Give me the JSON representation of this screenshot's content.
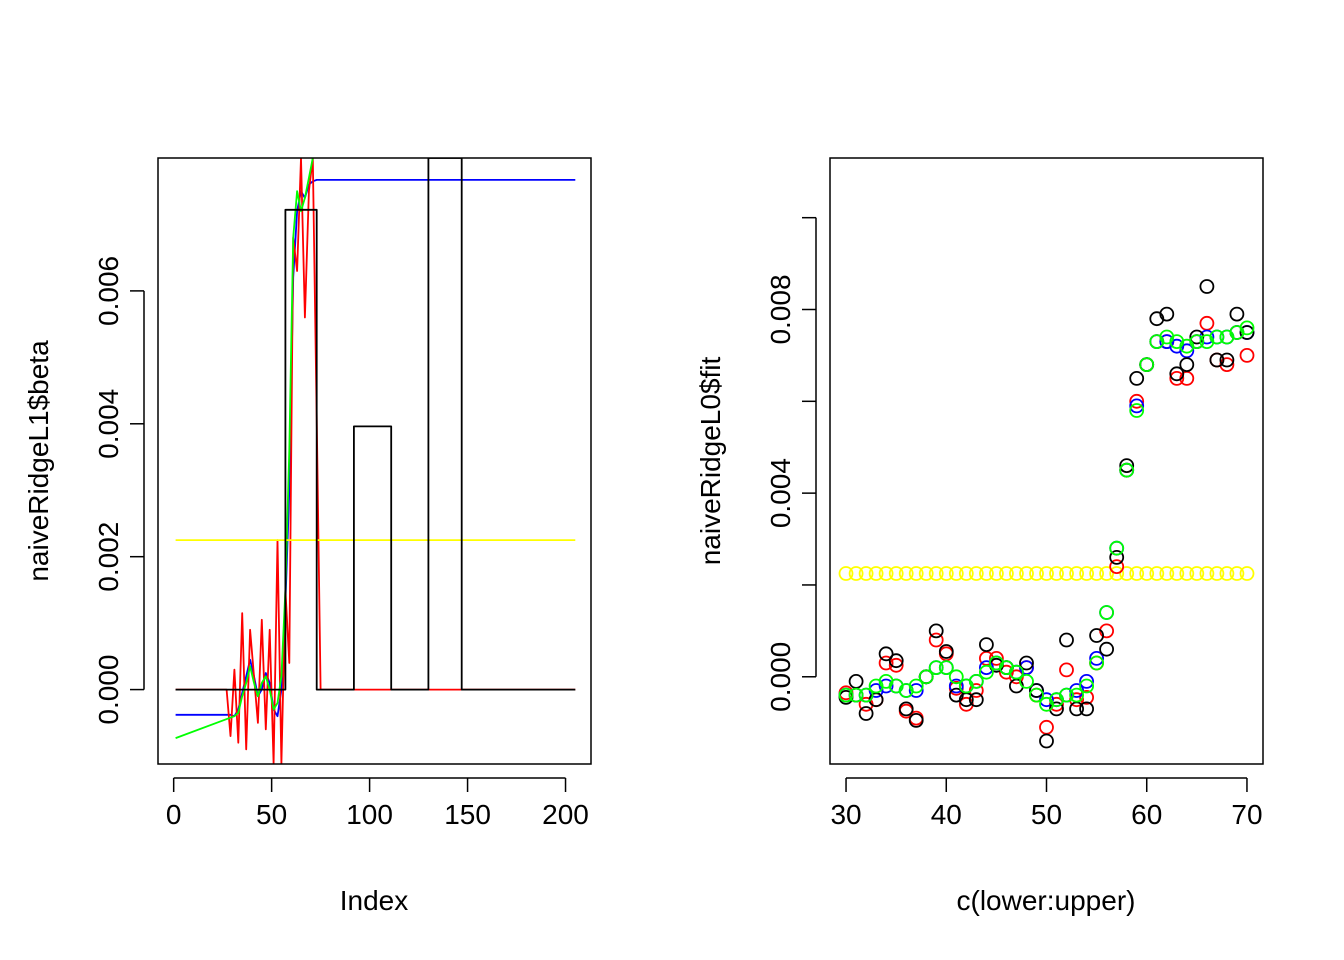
{
  "chart_data": [
    {
      "type": "line",
      "title": "",
      "xlabel": "Index",
      "ylabel": "naiveRidgeL1$beta",
      "xlim": [
        -8,
        213
      ],
      "ylim": [
        -0.00112,
        0.008
      ],
      "xticks": [
        0,
        50,
        100,
        150,
        200
      ],
      "xtick_labels": [
        "0",
        "50",
        "100",
        "150",
        "200"
      ],
      "yticks": [
        0.0,
        0.002,
        0.004,
        0.006
      ],
      "ytick_labels": [
        "0.000",
        "0.002",
        "0.004",
        "0.006"
      ],
      "grid": false,
      "legend": "none",
      "series": [
        {
          "color": "#0000ff",
          "points": [
            [
              1,
              -0.00038
            ],
            [
              29,
              -0.00038
            ],
            [
              31,
              -0.0004
            ],
            [
              33,
              -0.0003
            ],
            [
              35,
              -5e-05
            ],
            [
              37,
              0.0002
            ],
            [
              39,
              0.00045
            ],
            [
              41,
              0.0002
            ],
            [
              43,
              -0.0001
            ],
            [
              45,
              0.0
            ],
            [
              47,
              0.00025
            ],
            [
              49,
              0.0001
            ],
            [
              51,
              -0.0003
            ],
            [
              53,
              -0.0004
            ],
            [
              55,
              0.0
            ],
            [
              57,
              0.0013
            ],
            [
              59,
              0.003
            ],
            [
              61,
              0.0062
            ],
            [
              63,
              0.0072
            ],
            [
              65,
              0.0075
            ],
            [
              67,
              0.0074
            ],
            [
              69,
              0.0076
            ],
            [
              71,
              0.00765
            ],
            [
              73,
              0.00767
            ],
            [
              205,
              0.00767
            ]
          ]
        },
        {
          "color": "#ff0000",
          "points": [
            [
              1,
              0.0
            ],
            [
              27,
              0.0
            ],
            [
              29,
              -0.0007
            ],
            [
              31,
              0.0003
            ],
            [
              33,
              -0.0008
            ],
            [
              35,
              0.00115
            ],
            [
              37,
              -0.0009
            ],
            [
              39,
              0.0009
            ],
            [
              41,
              0.0002
            ],
            [
              43,
              -0.0005
            ],
            [
              45,
              0.00105
            ],
            [
              47,
              -0.0006
            ],
            [
              49,
              0.0009
            ],
            [
              51,
              -0.00112
            ],
            [
              53,
              0.00225
            ],
            [
              55,
              -0.00112
            ],
            [
              57,
              0.0015
            ],
            [
              59,
              0.0004
            ],
            [
              61,
              0.0068
            ],
            [
              63,
              0.0063
            ],
            [
              65,
              0.008
            ],
            [
              67,
              0.0056
            ],
            [
              69,
              0.0075
            ],
            [
              71,
              0.008
            ],
            [
              73,
              0.0041
            ],
            [
              75,
              0.0
            ],
            [
              205,
              0.0
            ]
          ]
        },
        {
          "color": "#00ff00",
          "points": [
            [
              1,
              -0.00073
            ],
            [
              31,
              -0.0004
            ],
            [
              33,
              -0.00035
            ],
            [
              35,
              -0.0001
            ],
            [
              37,
              0.0001
            ],
            [
              39,
              0.00035
            ],
            [
              41,
              0.0001
            ],
            [
              43,
              -0.0001
            ],
            [
              45,
              0.0001
            ],
            [
              47,
              0.0002
            ],
            [
              49,
              0.0
            ],
            [
              51,
              -0.0003
            ],
            [
              53,
              -0.0002
            ],
            [
              55,
              0.0002
            ],
            [
              57,
              0.0015
            ],
            [
              59,
              0.0036
            ],
            [
              61,
              0.0068
            ],
            [
              63,
              0.0075
            ],
            [
              65,
              0.0072
            ],
            [
              67,
              0.0074
            ],
            [
              69,
              0.0077
            ],
            [
              71,
              0.008
            ]
          ]
        },
        {
          "color": "#ffff00",
          "points": [
            [
              1,
              0.00225
            ],
            [
              205,
              0.00225
            ]
          ]
        },
        {
          "color": "#000000",
          "points": [
            [
              1,
              0.0
            ],
            [
              57,
              0.0
            ],
            [
              57,
              0.00722
            ],
            [
              73,
              0.00722
            ],
            [
              73,
              0.0
            ],
            [
              92,
              0.0
            ],
            [
              92,
              0.00396
            ],
            [
              111,
              0.00396
            ],
            [
              111,
              0.0
            ],
            [
              130,
              0.0
            ],
            [
              130,
              0.008
            ],
            [
              147,
              0.008
            ],
            [
              147,
              0.0
            ],
            [
              205,
              0.0
            ]
          ]
        }
      ]
    },
    {
      "type": "scatter",
      "title": "",
      "xlabel": "c(lower:upper)",
      "ylabel": "naiveRidgeL0$fit",
      "xlim": [
        28.4,
        71.6
      ],
      "ylim": [
        -0.0019,
        0.0113
      ],
      "xticks": [
        30,
        40,
        50,
        60,
        70
      ],
      "xtick_labels": [
        "30",
        "40",
        "50",
        "60",
        "70"
      ],
      "yticks": [
        0.0,
        0.004,
        0.008
      ],
      "ytick_labels": [
        "0.000",
        "0.004",
        "0.008"
      ],
      "ytick_minor": [
        0.002,
        0.006,
        0.01
      ],
      "grid": false,
      "legend": "none",
      "x": [
        30,
        31,
        32,
        33,
        34,
        35,
        36,
        37,
        38,
        39,
        40,
        41,
        42,
        43,
        44,
        45,
        46,
        47,
        48,
        49,
        50,
        51,
        52,
        53,
        54,
        55,
        56,
        57,
        58,
        59,
        60,
        61,
        62,
        63,
        64,
        65,
        66,
        67,
        68,
        69,
        70
      ],
      "series": [
        {
          "color": "#ffff00",
          "values": [
            0.00225,
            0.00225,
            0.00225,
            0.00225,
            0.00225,
            0.00225,
            0.00225,
            0.00225,
            0.00225,
            0.00225,
            0.00225,
            0.00225,
            0.00225,
            0.00225,
            0.00225,
            0.00225,
            0.00225,
            0.00225,
            0.00225,
            0.00225,
            0.00225,
            0.00225,
            0.00225,
            0.00225,
            0.00225,
            0.00225,
            0.00225,
            0.00225,
            0.00225,
            0.00225,
            0.00225,
            0.00225,
            0.00225,
            0.00225,
            0.00225,
            0.00225,
            0.00225,
            0.00225,
            0.00225,
            0.00225,
            0.00225
          ]
        },
        {
          "color": "#ff0000",
          "values": [
            -0.00035,
            -0.0004,
            -0.0006,
            -0.0005,
            0.0003,
            0.00025,
            -0.00075,
            -0.0009,
            0.0,
            0.0008,
            0.0005,
            -0.00025,
            -0.0006,
            -0.0003,
            0.0004,
            0.0004,
            0.0001,
            0.0,
            0.0002,
            -0.0004,
            -0.0011,
            -0.0006,
            0.00015,
            -0.0005,
            -0.00045,
            0.0003,
            0.001,
            0.0024,
            0.0045,
            0.006,
            0.0068,
            0.0073,
            0.0073,
            0.0065,
            0.0065,
            0.0073,
            0.0077,
            0.0069,
            0.0068,
            0.0075,
            0.007
          ]
        },
        {
          "color": "#0000ff",
          "values": [
            -0.0004,
            -0.0004,
            -0.0004,
            -0.0003,
            -0.0002,
            -0.0002,
            -0.0003,
            -0.0003,
            0.0,
            0.0002,
            0.0002,
            -0.0002,
            -0.0002,
            -0.0001,
            0.0002,
            0.0003,
            0.0002,
            0.0001,
            0.0002,
            -0.0003,
            -0.0005,
            -0.0005,
            -0.0004,
            -0.0003,
            -0.0001,
            0.0004,
            0.0014,
            0.0028,
            0.0045,
            0.0059,
            0.0068,
            0.0073,
            0.0073,
            0.0072,
            0.0071,
            0.0073,
            0.0074,
            0.0074,
            0.0074,
            0.0075,
            0.0075
          ]
        },
        {
          "color": "#000000",
          "values": [
            -0.00045,
            -0.0001,
            -0.0008,
            -0.0005,
            0.0005,
            0.00035,
            -0.0007,
            -0.00095,
            0.0,
            0.001,
            0.00055,
            -0.0004,
            -0.0005,
            -0.0005,
            0.0007,
            0.00025,
            0.0002,
            -0.0002,
            0.0003,
            -0.0003,
            -0.0014,
            -0.0007,
            0.0008,
            -0.0007,
            -0.0007,
            0.0009,
            0.0006,
            0.0026,
            0.0046,
            0.0065,
            0.0068,
            0.0078,
            0.0079,
            0.0066,
            0.0068,
            0.0074,
            0.0085,
            0.0069,
            0.0069,
            0.0079,
            0.0075
          ]
        },
        {
          "color": "#00ff00",
          "values": [
            -0.0004,
            -0.0004,
            -0.0004,
            -0.0002,
            -0.0001,
            -0.0002,
            -0.0003,
            -0.0002,
            0.0,
            0.0002,
            0.0002,
            0.0,
            -0.0002,
            -0.0001,
            0.0001,
            0.0003,
            0.0002,
            0.0001,
            -0.0001,
            -0.0004,
            -0.0006,
            -0.0005,
            -0.0004,
            -0.0004,
            -0.0002,
            0.0003,
            0.0014,
            0.0028,
            0.0045,
            0.0058,
            0.0068,
            0.0073,
            0.0074,
            0.0073,
            0.0072,
            0.0073,
            0.0073,
            0.0074,
            0.0074,
            0.0075,
            0.0076
          ]
        }
      ]
    }
  ]
}
